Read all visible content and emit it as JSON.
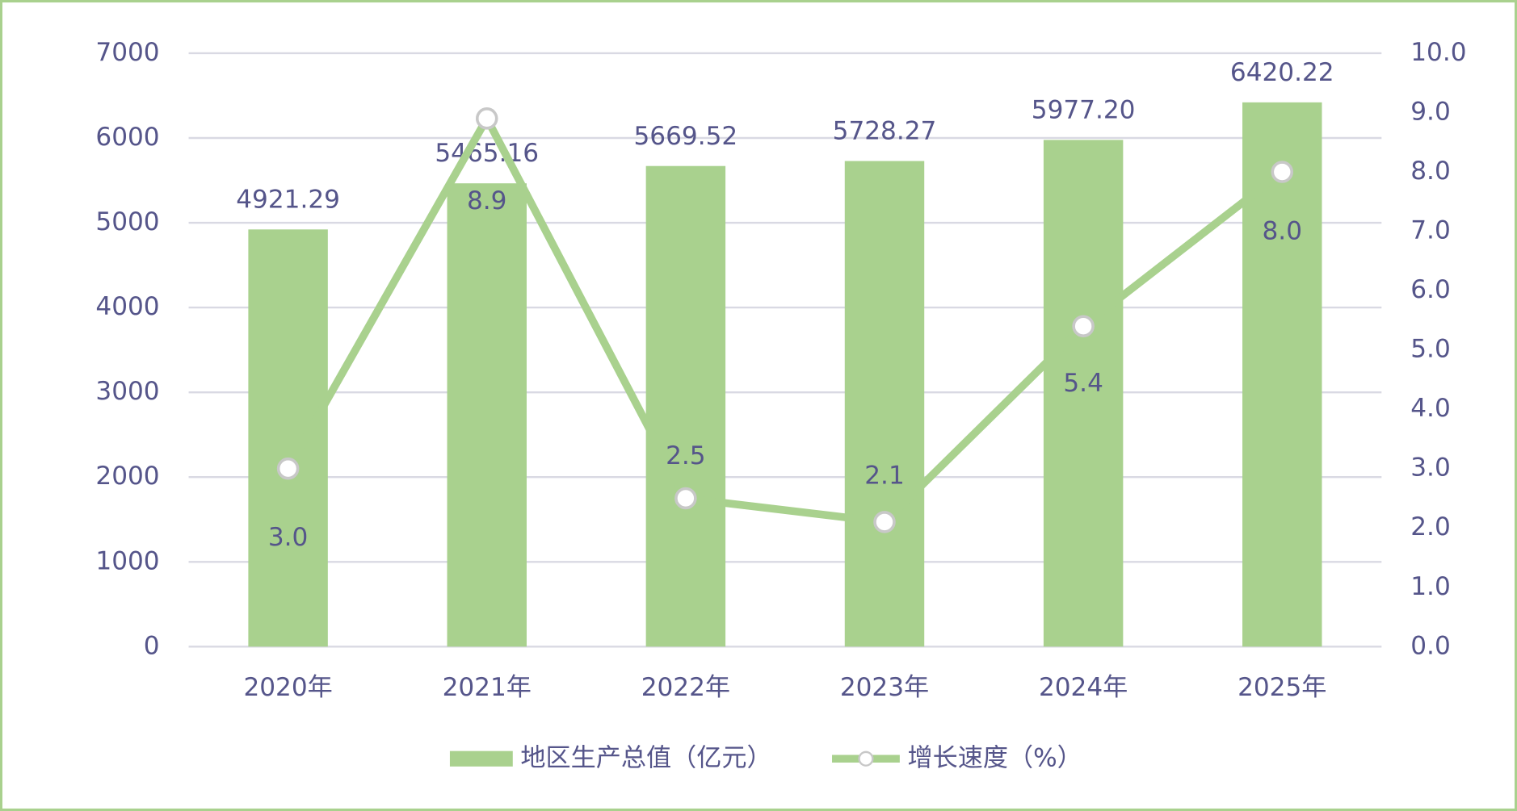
{
  "chart_data": {
    "type": "bar_line",
    "categories": [
      "2020年",
      "2021年",
      "2022年",
      "2023年",
      "2024年",
      "2025年"
    ],
    "series": [
      {
        "name": "地区生产总值（亿元）",
        "type": "bar",
        "color": "#a9d18e",
        "axis": "y",
        "values": [
          4921.29,
          5465.16,
          5669.52,
          5728.27,
          5977.2,
          6420.22
        ],
        "value_labels": [
          "4921.29",
          "5465.16",
          "5669.52",
          "5728.27",
          "5977.20",
          "6420.22"
        ]
      },
      {
        "name": "增长速度（%）",
        "type": "line",
        "color": "#a9d18e",
        "axis": "y2",
        "values": [
          3.0,
          8.9,
          2.5,
          2.1,
          5.4,
          8.0
        ],
        "value_labels": [
          "3.0",
          "8.9",
          "2.5",
          "2.1",
          "5.4",
          "8.0"
        ]
      }
    ],
    "ylim": [
      0,
      7000
    ],
    "yticks": [
      0,
      1000,
      2000,
      3000,
      4000,
      5000,
      6000,
      7000
    ],
    "y2lim": [
      0,
      10
    ],
    "y2ticks": [
      {
        "value": 0,
        "label": "0.0"
      },
      {
        "value": 1,
        "label": "1.0"
      },
      {
        "value": 2,
        "label": "2.0"
      },
      {
        "value": 3,
        "label": "3.0"
      },
      {
        "value": 4,
        "label": "4.0"
      },
      {
        "value": 5,
        "label": "5.0"
      },
      {
        "value": 6,
        "label": "6.0"
      },
      {
        "value": 7,
        "label": "7.0"
      },
      {
        "value": 8,
        "label": "8.0"
      },
      {
        "value": 9,
        "label": "9.0"
      },
      {
        "value": 10,
        "label": "10.0"
      }
    ],
    "grid": true,
    "legend": "bottom"
  }
}
